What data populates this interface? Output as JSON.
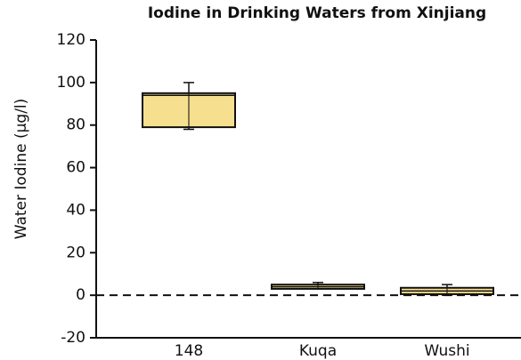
{
  "chart_data": {
    "type": "box",
    "title": "Iodine in Drinking Waters from Xinjiang",
    "y_label": "Water Iodine (µg/l)",
    "categories": [
      "148",
      "Kuqa",
      "Wushi"
    ],
    "boxes": [
      {
        "min": 78,
        "q1": 79,
        "median": 94,
        "q3": 95,
        "max": 100
      },
      {
        "min": 3,
        "q1": 3,
        "median": 4,
        "q3": 5,
        "max": 6
      },
      {
        "min": 0,
        "q1": 0.5,
        "median": 2,
        "q3": 3.5,
        "max": 5
      }
    ],
    "box_color": "#f5dc82",
    "reference_line": 0,
    "ylim": [
      -20,
      120
    ],
    "yticks": [
      -20,
      0,
      20,
      40,
      60,
      80,
      100,
      120
    ]
  }
}
